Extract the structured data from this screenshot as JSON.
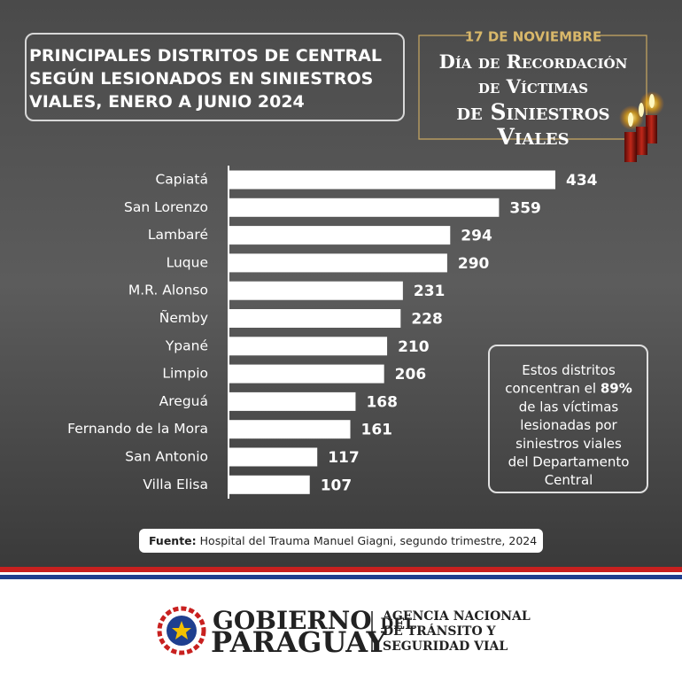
{
  "chart_data": {
    "type": "bar",
    "orientation": "horizontal",
    "title": [
      "PRINCIPALES DISTRITOS DE CENTRAL",
      "SEGÚN LESIONADOS EN SINIESTROS",
      "VIALES, ENERO A JUNIO 2024"
    ],
    "categories": [
      "Capiatá",
      "San Lorenzo",
      "Lambaré",
      "Luque",
      "M.R. Alonso",
      "Ñemby",
      "Ypané",
      "Limpio",
      "Areguá",
      "Fernando de la Mora",
      "San Antonio",
      "Villa Elisa"
    ],
    "values": [
      434,
      359,
      294,
      290,
      231,
      228,
      210,
      206,
      168,
      161,
      117,
      107
    ],
    "color": "#ffffff"
  },
  "commemoration": {
    "date": "17 DE NOVIEMBRE",
    "lines": [
      "Día de Recordación",
      "de Víctimas",
      "de Siniestros",
      "Viales"
    ]
  },
  "note": {
    "lines": [
      "Estos distritos",
      "concentran el",
      "de las víctimas",
      "lesionadas por",
      "siniestros viales",
      "del Departamento",
      "Central"
    ],
    "highlight": "89%"
  },
  "source": {
    "label": "Fuente:",
    "text": "Hospital del Trauma Manuel Giagni, segundo trimestre, 2024"
  },
  "footer": {
    "gov_line1": "GOBIERNO",
    "gov_del": "DEL",
    "gov_line2": "PARAGUAY",
    "agency": [
      "AGENCIA NACIONAL",
      "DE TRÁNSITO Y",
      "SEGURIDAD VIAL"
    ]
  }
}
